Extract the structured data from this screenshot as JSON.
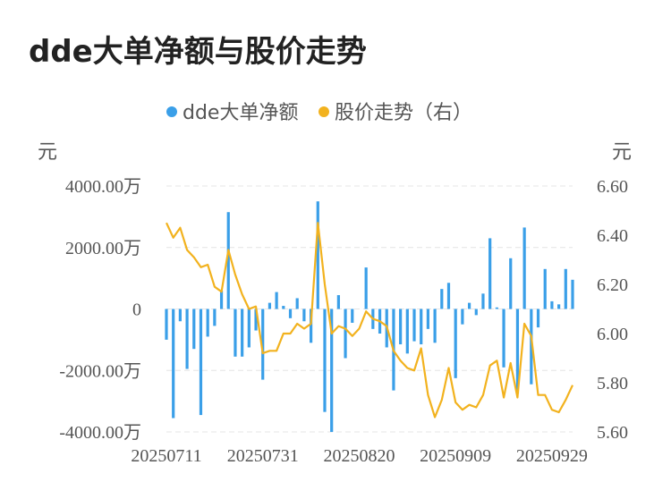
{
  "title": "dde大单净额与股价走势",
  "colors": {
    "bar": "#3a9fe8",
    "line": "#f2b21e",
    "grid": "#e4e4e4",
    "text": "#555555"
  },
  "chart_data": {
    "type": "bar+line",
    "legend": [
      {
        "name": "dde大单净额",
        "color": "#3a9fe8",
        "marker": "circle"
      },
      {
        "name": "股价走势（右）",
        "color": "#f2b21e",
        "marker": "circle"
      }
    ],
    "left_axis": {
      "unit": "元",
      "ticks": [
        "4000.00万",
        "2000.00万",
        "0",
        "-2000.00万",
        "-4000.00万"
      ],
      "tick_values": [
        4000,
        2000,
        0,
        -2000,
        -4000
      ],
      "range": [
        -4000,
        4000
      ]
    },
    "right_axis": {
      "unit": "元",
      "ticks": [
        "6.60",
        "6.40",
        "6.20",
        "6.00",
        "5.80",
        "5.60"
      ],
      "tick_values": [
        6.6,
        6.4,
        6.2,
        6.0,
        5.8,
        5.6
      ],
      "range": [
        5.6,
        6.6
      ]
    },
    "x_ticks": [
      {
        "label": "20250711",
        "index": 0
      },
      {
        "label": "20250731",
        "index": 14
      },
      {
        "label": "20250820",
        "index": 28
      },
      {
        "label": "20250909",
        "index": 42
      },
      {
        "label": "20250929",
        "index": 56
      }
    ],
    "series": [
      {
        "name": "dde大单净额",
        "axis": "left",
        "values": [
          -1000,
          -3550,
          -400,
          -1950,
          -1300,
          -3450,
          -900,
          -550,
          600,
          3150,
          -1550,
          -1550,
          -1250,
          -700,
          -2300,
          200,
          550,
          100,
          -300,
          350,
          -400,
          -1100,
          3500,
          -3350,
          -4000,
          450,
          -1600,
          -450,
          0,
          1350,
          -650,
          -800,
          -1250,
          -2650,
          -1150,
          -1450,
          -1050,
          -1150,
          -650,
          -1100,
          650,
          850,
          -2250,
          -500,
          200,
          -200,
          500,
          2300,
          50,
          -1900,
          1650,
          -2750,
          2650,
          -2450,
          -600,
          1300,
          250,
          150,
          1300,
          950
        ]
      },
      {
        "name": "股价走势（右）",
        "axis": "right",
        "values": [
          6.45,
          6.39,
          6.43,
          6.34,
          6.31,
          6.27,
          6.28,
          6.19,
          6.17,
          6.34,
          6.24,
          6.16,
          6.1,
          6.11,
          5.92,
          5.93,
          5.93,
          6.0,
          6.0,
          6.04,
          6.02,
          6.04,
          6.45,
          6.2,
          6.0,
          6.03,
          6.02,
          5.99,
          6.02,
          6.09,
          6.06,
          6.05,
          6.03,
          5.93,
          5.89,
          5.86,
          5.85,
          5.94,
          5.75,
          5.66,
          5.73,
          5.86,
          5.72,
          5.69,
          5.71,
          5.7,
          5.75,
          5.87,
          5.89,
          5.74,
          5.88,
          5.74,
          6.04,
          5.99,
          5.75,
          5.75,
          5.69,
          5.68,
          5.73,
          5.79
        ]
      }
    ]
  }
}
